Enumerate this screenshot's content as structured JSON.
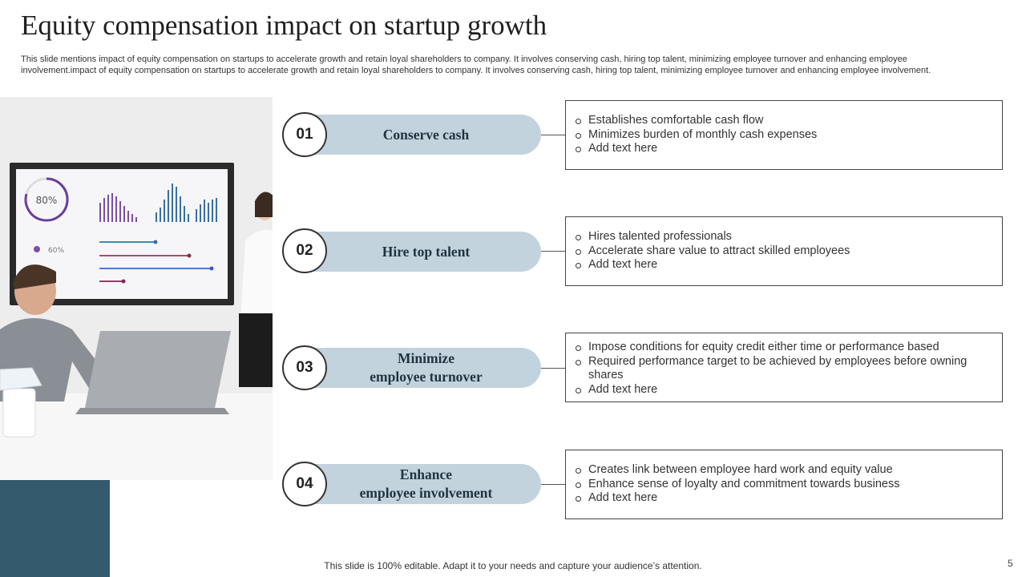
{
  "slide": {
    "title": "Equity compensation impact on startup growth",
    "subtitle": "This slide mentions impact of equity compensation on startups to accelerate growth and retain loyal shareholders to company. It involves conserving cash, hiring top talent, minimizing employee turnover and enhancing employee involvement.impact of equity compensation on startups to accelerate growth and retain loyal shareholders to company. It involves conserving cash, hiring top talent, minimizing employee turnover and enhancing employee involvement.",
    "footer": "This slide is 100% editable. Adapt it to your needs and capture your audience’s attention.",
    "page_number": "5"
  },
  "photo": {
    "screen_gauge_value": "80%",
    "screen_legend_value": "60%"
  },
  "rows": [
    {
      "number": "01",
      "label": "Conserve cash",
      "bullets": [
        "Establishes comfortable cash flow",
        "Minimizes burden of monthly cash expenses",
        "Add text here"
      ]
    },
    {
      "number": "02",
      "label": "Hire top talent",
      "bullets": [
        "Hires talented professionals",
        "Accelerate share value to attract skilled employees",
        "Add text here"
      ]
    },
    {
      "number": "03",
      "label": "Minimize\nemployee turnover",
      "bullets": [
        "Impose conditions for equity credit either time or performance based",
        "Required performance target to be achieved by employees before owning shares",
        "Add text here"
      ]
    },
    {
      "number": "04",
      "label": "Enhance\nemployee involvement",
      "bullets": [
        "Creates link between employee hard work and equity value",
        "Enhance sense of loyalty and commitment towards business",
        "Add text here"
      ]
    }
  ],
  "colors": {
    "pill": "#c3d3de",
    "accent_block": "#345a6e",
    "screen_bars": "#7b4fa6"
  }
}
